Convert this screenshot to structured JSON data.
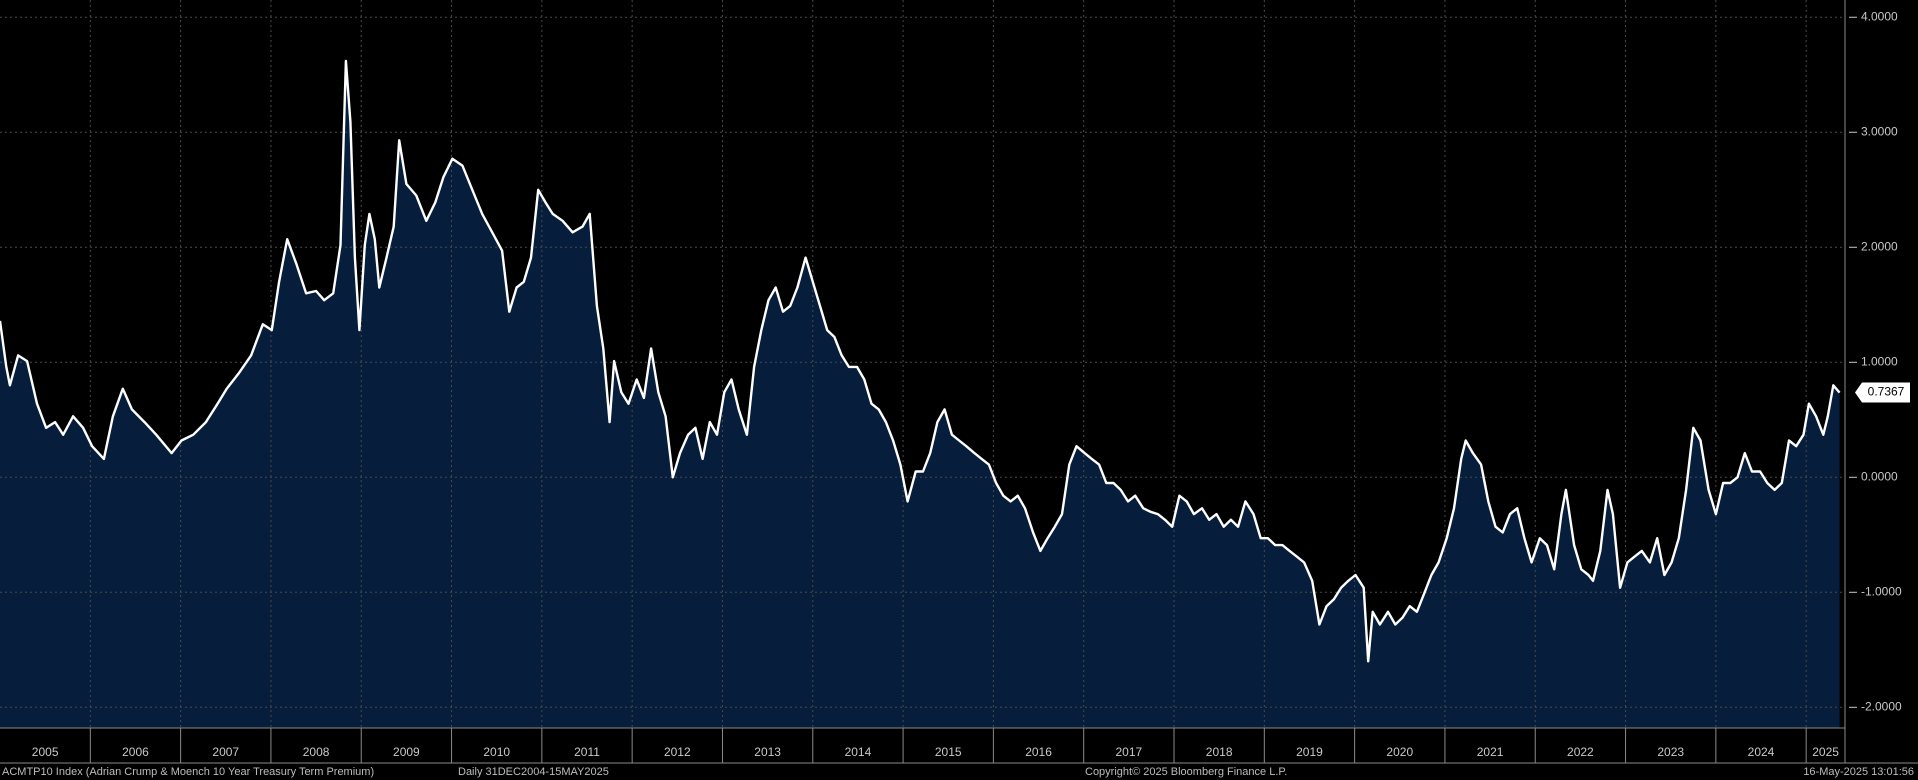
{
  "chart_data": {
    "type": "area",
    "title": "ACMTP10 Index (Adrian Crump & Moench 10 Year Treasury Term Premium)",
    "subtitle": "Daily 31DEC2004-15MAY2025",
    "copyright": "Copyright© 2025 Bloomberg Finance L.P.",
    "timestamp": "16-May-2025 13:01:56",
    "color": "#ffffff",
    "fill": "#061d3c",
    "grid": true,
    "xlim": [
      2005,
      2025.43
    ],
    "ylim": [
      -2.18,
      4.15
    ],
    "xticks": [
      2005,
      2006,
      2007,
      2008,
      2009,
      2010,
      2011,
      2012,
      2013,
      2014,
      2015,
      2016,
      2017,
      2018,
      2019,
      2020,
      2021,
      2022,
      2023,
      2024,
      2025
    ],
    "yticks": [
      {
        "value": -2,
        "label": "-2.0000"
      },
      {
        "value": -1,
        "label": "-1.0000"
      },
      {
        "value": 0,
        "label": "0.0000"
      },
      {
        "value": 1,
        "label": "1.0000"
      },
      {
        "value": 2,
        "label": "2.0000"
      },
      {
        "value": 3,
        "label": "3.0000"
      },
      {
        "value": 4,
        "label": "4.0000"
      }
    ],
    "last_value": 0.7367,
    "x": [
      2005.0,
      2005.07,
      2005.11,
      2005.2,
      2005.3,
      2005.41,
      2005.51,
      2005.61,
      2005.7,
      2005.81,
      2005.92,
      2006.02,
      2006.15,
      2006.25,
      2006.36,
      2006.46,
      2006.6,
      2006.73,
      2006.9,
      2007.01,
      2007.14,
      2007.28,
      2007.41,
      2007.51,
      2007.64,
      2007.78,
      2007.91,
      2008.01,
      2008.09,
      2008.18,
      2008.28,
      2008.39,
      2008.5,
      2008.59,
      2008.69,
      2008.77,
      2008.83,
      2008.88,
      2008.93,
      2008.98,
      2009.04,
      2009.09,
      2009.15,
      2009.2,
      2009.28,
      2009.36,
      2009.42,
      2009.5,
      2009.61,
      2009.72,
      2009.82,
      2009.91,
      2010.01,
      2010.12,
      2010.23,
      2010.34,
      2010.45,
      2010.56,
      2010.64,
      2010.72,
      2010.8,
      2010.88,
      2010.96,
      2011.04,
      2011.12,
      2011.23,
      2011.34,
      2011.45,
      2011.53,
      2011.61,
      2011.68,
      2011.75,
      2011.8,
      2011.88,
      2011.96,
      2012.05,
      2012.13,
      2012.21,
      2012.29,
      2012.37,
      2012.45,
      2012.53,
      2012.62,
      2012.7,
      2012.78,
      2012.86,
      2012.94,
      2013.02,
      2013.1,
      2013.18,
      2013.27,
      2013.35,
      2013.43,
      2013.51,
      2013.59,
      2013.67,
      2013.75,
      2013.83,
      2013.92,
      2014.0,
      2014.08,
      2014.16,
      2014.24,
      2014.32,
      2014.4,
      2014.49,
      2014.57,
      2014.65,
      2014.73,
      2014.81,
      2014.89,
      2014.97,
      2015.05,
      2015.14,
      2015.22,
      2015.3,
      2015.38,
      2015.46,
      2015.54,
      2015.62,
      2015.7,
      2015.79,
      2015.87,
      2015.95,
      2016.03,
      2016.11,
      2016.19,
      2016.27,
      2016.35,
      2016.44,
      2016.52,
      2016.6,
      2016.68,
      2016.76,
      2016.84,
      2016.92,
      2017.01,
      2017.09,
      2017.17,
      2017.25,
      2017.33,
      2017.41,
      2017.49,
      2017.57,
      2017.66,
      2017.74,
      2017.82,
      2017.9,
      2017.98,
      2018.06,
      2018.14,
      2018.22,
      2018.31,
      2018.39,
      2018.47,
      2018.55,
      2018.63,
      2018.71,
      2018.79,
      2018.88,
      2018.96,
      2019.04,
      2019.12,
      2019.2,
      2019.28,
      2019.36,
      2019.44,
      2019.53,
      2019.61,
      2019.69,
      2019.77,
      2019.85,
      2019.93,
      2020.01,
      2020.1,
      2020.15,
      2020.2,
      2020.28,
      2020.37,
      2020.45,
      2020.53,
      2020.61,
      2020.69,
      2020.77,
      2020.85,
      2020.93,
      2021.02,
      2021.1,
      2021.18,
      2021.23,
      2021.31,
      2021.4,
      2021.48,
      2021.56,
      2021.64,
      2021.72,
      2021.8,
      2021.88,
      2021.96,
      2022.05,
      2022.13,
      2022.21,
      2022.29,
      2022.34,
      2022.43,
      2022.51,
      2022.59,
      2022.64,
      2022.72,
      2022.8,
      2022.86,
      2022.94,
      2023.02,
      2023.1,
      2023.18,
      2023.27,
      2023.35,
      2023.43,
      2023.51,
      2023.59,
      2023.67,
      2023.75,
      2023.83,
      2023.92,
      2024.0,
      2024.08,
      2024.16,
      2024.24,
      2024.32,
      2024.4,
      2024.49,
      2024.57,
      2024.65,
      2024.73,
      2024.81,
      2024.89,
      2024.97,
      2025.03,
      2025.11,
      2025.19,
      2025.24,
      2025.3,
      2025.37
    ],
    "values": [
      1.36,
      0.96,
      0.8,
      1.06,
      1.01,
      0.64,
      0.43,
      0.48,
      0.37,
      0.53,
      0.43,
      0.27,
      0.16,
      0.53,
      0.77,
      0.59,
      0.48,
      0.37,
      0.21,
      0.32,
      0.37,
      0.48,
      0.64,
      0.77,
      0.9,
      1.06,
      1.33,
      1.28,
      1.7,
      2.07,
      1.86,
      1.6,
      1.62,
      1.54,
      1.6,
      2.02,
      3.62,
      3.09,
      1.91,
      1.28,
      2.02,
      2.29,
      2.07,
      1.65,
      1.91,
      2.18,
      2.93,
      2.55,
      2.45,
      2.23,
      2.39,
      2.61,
      2.77,
      2.71,
      2.5,
      2.29,
      2.13,
      1.97,
      1.44,
      1.65,
      1.7,
      1.91,
      2.5,
      2.39,
      2.29,
      2.23,
      2.13,
      2.18,
      2.29,
      1.49,
      1.12,
      0.48,
      1.01,
      0.74,
      0.64,
      0.85,
      0.69,
      1.12,
      0.74,
      0.53,
      0.0,
      0.21,
      0.37,
      0.43,
      0.16,
      0.48,
      0.37,
      0.74,
      0.85,
      0.59,
      0.37,
      0.96,
      1.28,
      1.54,
      1.65,
      1.44,
      1.49,
      1.65,
      1.91,
      1.7,
      1.49,
      1.28,
      1.22,
      1.06,
      0.96,
      0.96,
      0.85,
      0.64,
      0.59,
      0.48,
      0.32,
      0.11,
      -0.21,
      0.05,
      0.05,
      0.21,
      0.48,
      0.59,
      0.37,
      0.32,
      0.27,
      0.21,
      0.16,
      0.11,
      -0.05,
      -0.16,
      -0.21,
      -0.16,
      -0.27,
      -0.48,
      -0.64,
      -0.53,
      -0.43,
      -0.32,
      0.11,
      0.27,
      0.21,
      0.16,
      0.11,
      -0.05,
      -0.05,
      -0.11,
      -0.21,
      -0.16,
      -0.27,
      -0.3,
      -0.32,
      -0.37,
      -0.43,
      -0.16,
      -0.21,
      -0.32,
      -0.27,
      -0.37,
      -0.32,
      -0.43,
      -0.37,
      -0.43,
      -0.21,
      -0.32,
      -0.53,
      -0.53,
      -0.59,
      -0.59,
      -0.64,
      -0.69,
      -0.74,
      -0.9,
      -1.28,
      -1.12,
      -1.06,
      -0.96,
      -0.9,
      -0.85,
      -0.96,
      -1.6,
      -1.17,
      -1.28,
      -1.17,
      -1.28,
      -1.22,
      -1.12,
      -1.17,
      -1.01,
      -0.85,
      -0.74,
      -0.53,
      -0.27,
      0.16,
      0.32,
      0.21,
      0.11,
      -0.21,
      -0.43,
      -0.48,
      -0.32,
      -0.27,
      -0.53,
      -0.74,
      -0.53,
      -0.59,
      -0.8,
      -0.32,
      -0.11,
      -0.59,
      -0.8,
      -0.85,
      -0.9,
      -0.64,
      -0.11,
      -0.32,
      -0.96,
      -0.74,
      -0.69,
      -0.64,
      -0.74,
      -0.53,
      -0.85,
      -0.74,
      -0.53,
      -0.11,
      0.43,
      0.32,
      -0.11,
      -0.32,
      -0.05,
      -0.05,
      0.0,
      0.21,
      0.05,
      0.05,
      -0.05,
      -0.11,
      -0.05,
      0.32,
      0.27,
      0.37,
      0.64,
      0.53,
      0.37,
      0.53,
      0.8,
      0.7367
    ]
  }
}
